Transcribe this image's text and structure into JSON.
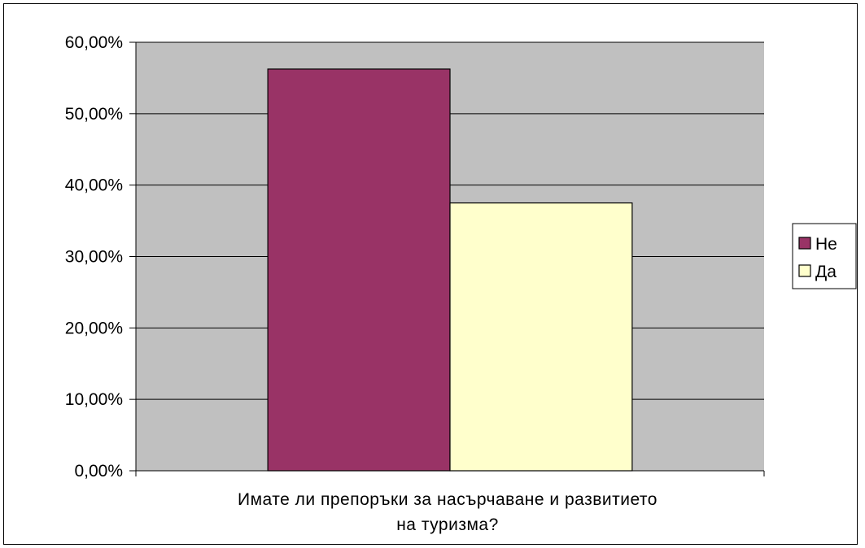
{
  "chart_data": {
    "type": "bar",
    "categories": [
      "Имате ли препоръки за насърчаване и развитието на туризма?"
    ],
    "category_lines": [
      "Имате ли препоръки за насърчаване и развитието",
      "на туризма?"
    ],
    "series": [
      {
        "name": "Не",
        "values": [
          0.5625
        ],
        "color": "#993366"
      },
      {
        "name": "Да",
        "values": [
          0.375
        ],
        "color": "#FFFFCC"
      }
    ],
    "ylim": [
      0,
      0.6
    ],
    "yticks": [
      0,
      0.1,
      0.2,
      0.3,
      0.4,
      0.5,
      0.6
    ],
    "ytick_labels": [
      "0,00%",
      "10,00%",
      "20,00%",
      "30,00%",
      "40,00%",
      "50,00%",
      "60,00%"
    ],
    "title": "",
    "xlabel": "",
    "ylabel": "",
    "grid": true,
    "legend_position": "right",
    "plot_background": "#C0C0C0"
  }
}
